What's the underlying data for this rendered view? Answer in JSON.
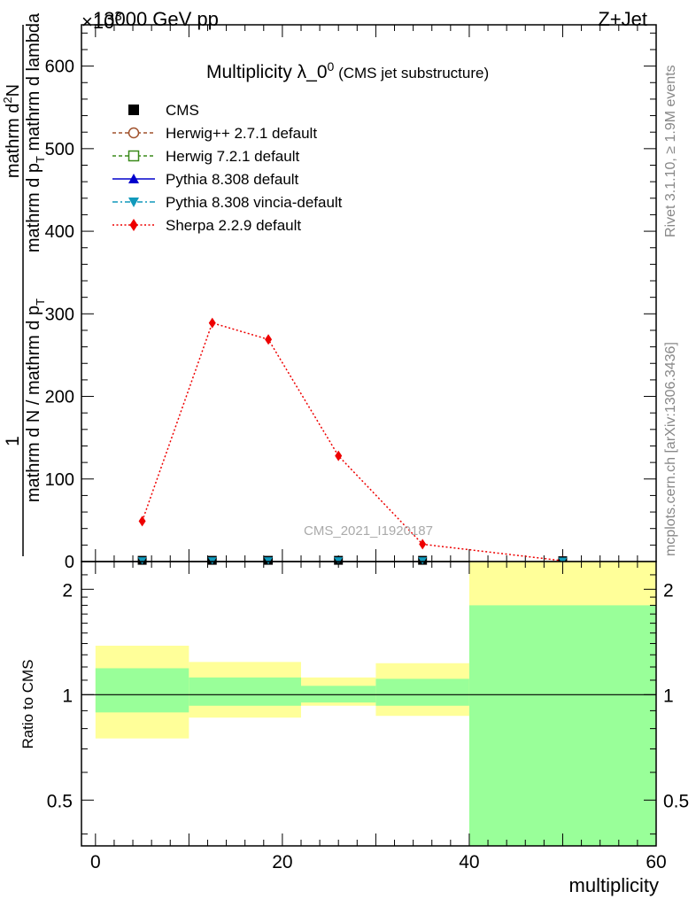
{
  "header": {
    "energy_label": "13000 GeV pp",
    "process_label": "Z+Jet",
    "exponent_label": "×10",
    "exponent_power": "3"
  },
  "side_labels": {
    "rivet": "Rivet 3.1.10, ≥ 1.9M events",
    "mcplots": "mcplots.cern.ch [arXiv:1306.3436]"
  },
  "watermark": "CMS_2021_I1920187",
  "chart_data": [
    {
      "type": "line",
      "title_main": "Multiplicity λ_0",
      "title_sup": "0",
      "title_sub": " (CMS jet substructure)",
      "ylabel_parts": {
        "one": "1",
        "denominator": "mathrm d N / mathrm d p",
        "denominator_sub": "T",
        "numerator": "mathrm d",
        "numerator_sup": "2",
        "numerator_tail": "N",
        "den2": "mathrm d p",
        "den2_sub": "T",
        "den2_tail": " mathrm d lambda"
      },
      "ylim": [
        0,
        650
      ],
      "yticks": [
        0,
        100,
        200,
        300,
        400,
        500,
        600
      ],
      "xlim": [
        -1.5,
        60
      ],
      "legend_position": "top-left",
      "legend": [
        {
          "name": "CMS",
          "color": "#000000",
          "marker": "square-filled",
          "line": "none"
        },
        {
          "name": "Herwig++ 2.7.1 default",
          "color": "#a0522d",
          "marker": "circle-open",
          "line": "dashed"
        },
        {
          "name": "Herwig 7.2.1 default",
          "color": "#3a8a1a",
          "marker": "square-open",
          "line": "dashed"
        },
        {
          "name": "Pythia 8.308 default",
          "color": "#0000cc",
          "marker": "triangle-up",
          "line": "solid"
        },
        {
          "name": "Pythia 8.308 vincia-default",
          "color": "#1199bb",
          "marker": "triangle-down",
          "line": "dashdot"
        },
        {
          "name": "Sherpa 2.2.9 default",
          "color": "#ee0000",
          "marker": "diamond",
          "line": "dotted"
        }
      ],
      "bins": [
        [
          0,
          10
        ],
        [
          10,
          15
        ],
        [
          15,
          22
        ],
        [
          22,
          30
        ],
        [
          30,
          40
        ],
        [
          40,
          60
        ]
      ],
      "series": [
        {
          "name": "CMS",
          "x": [
            5,
            12.5,
            18.5,
            26,
            35,
            50
          ],
          "values": [
            1.5,
            1.5,
            1.5,
            1.5,
            1.5,
            1.0
          ]
        },
        {
          "name": "Pythia 8.308 vincia-default",
          "x": [
            5,
            12.5,
            18.5,
            26,
            35,
            50
          ],
          "values": [
            1.0,
            1.0,
            1.0,
            1.0,
            1.0,
            0.6
          ]
        },
        {
          "name": "Sherpa 2.2.9 default",
          "x": [
            5,
            12.5,
            18.5,
            26,
            35,
            50
          ],
          "values": [
            49,
            289,
            269,
            128,
            21,
            1
          ]
        }
      ]
    },
    {
      "type": "area",
      "ylabel": "Ratio to CMS",
      "xlabel": "multiplicity",
      "ylim": [
        0.37,
        2.4
      ],
      "yscale": "log",
      "yticks": [
        0.5,
        1,
        2
      ],
      "xticks": [
        0,
        20,
        40,
        60
      ],
      "xlim": [
        -1.5,
        60
      ],
      "reference_line": 1,
      "bands": [
        {
          "xmin": 0,
          "xmax": 10,
          "yellow": [
            0.75,
            1.38
          ],
          "green": [
            0.89,
            1.19
          ]
        },
        {
          "xmin": 10,
          "xmax": 22,
          "yellow": [
            0.86,
            1.24
          ],
          "green": [
            0.93,
            1.12
          ]
        },
        {
          "xmin": 22,
          "xmax": 30,
          "yellow": [
            0.93,
            1.12
          ],
          "green": [
            0.95,
            1.06
          ]
        },
        {
          "xmin": 30,
          "xmax": 40,
          "yellow": [
            0.87,
            1.23
          ],
          "green": [
            0.93,
            1.11
          ]
        },
        {
          "xmin": 40,
          "xmax": 60,
          "yellow": [
            0.37,
            2.4
          ],
          "green": [
            0.37,
            1.8
          ]
        }
      ],
      "band_colors": {
        "yellow": "#ffff99",
        "green": "#99ff99"
      }
    }
  ]
}
